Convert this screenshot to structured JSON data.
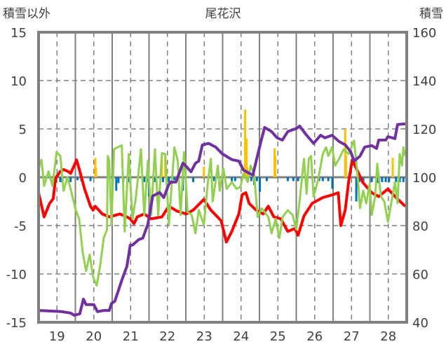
{
  "chart_data": {
    "type": "line",
    "title": "尾花沢",
    "ylabel_left": "積雪以外",
    "ylabel_right": "積雪",
    "xlim": [
      18.5,
      28.5
    ],
    "ylim_left": [
      -15,
      15
    ],
    "ylim_right": [
      40,
      160
    ],
    "x_ticks": [
      "19",
      "20",
      "21",
      "22",
      "23",
      "24",
      "25",
      "26",
      "27",
      "28"
    ],
    "y_ticks_left": [
      "15",
      "10",
      "5",
      "0",
      "-5",
      "-10",
      "-15"
    ],
    "y_ticks_right": [
      "160",
      "140",
      "120",
      "100",
      "80",
      "60",
      "40"
    ],
    "grid": true,
    "colors": {
      "red": "#ff0000",
      "green": "#92d050",
      "purple": "#7030a0",
      "orange": "#ffc000",
      "blue": "#0070c0",
      "axis": "#808080"
    },
    "series": [
      {
        "name": "red-line",
        "axis": "left",
        "color": "#ff0000",
        "points": [
          [
            18.5,
            -1.6
          ],
          [
            18.65,
            -4.1
          ],
          [
            18.8,
            -2.7
          ],
          [
            18.9,
            -2.2
          ],
          [
            18.96,
            -0.1
          ],
          [
            19.09,
            0.6
          ],
          [
            19.18,
            0.8
          ],
          [
            19.3,
            0.6
          ],
          [
            19.37,
            0.4
          ],
          [
            19.49,
            1.4
          ],
          [
            19.53,
            1.8
          ],
          [
            19.6,
            0.9
          ],
          [
            19.75,
            -1.2
          ],
          [
            19.91,
            -3.0
          ],
          [
            19.98,
            -3.4
          ],
          [
            20.04,
            -3.0
          ],
          [
            20.23,
            -3.8
          ],
          [
            20.42,
            -4.1
          ],
          [
            20.71,
            -3.8
          ],
          [
            20.9,
            -4.1
          ],
          [
            20.99,
            -4.3
          ],
          [
            21.09,
            -4.8
          ],
          [
            21.18,
            -4.1
          ],
          [
            21.37,
            -3.8
          ],
          [
            21.56,
            -4.3
          ],
          [
            21.85,
            -4.1
          ],
          [
            22.04,
            -3.0
          ],
          [
            22.26,
            -3.5
          ],
          [
            22.51,
            -3.8
          ],
          [
            22.7,
            -3.4
          ],
          [
            22.99,
            -2.3
          ],
          [
            23.18,
            -3.4
          ],
          [
            23.46,
            -4.5
          ],
          [
            23.6,
            -6.7
          ],
          [
            23.75,
            -5.6
          ],
          [
            23.94,
            -3.8
          ],
          [
            24.03,
            -1.8
          ],
          [
            24.13,
            -1.6
          ],
          [
            24.22,
            -2.7
          ],
          [
            24.41,
            -3.4
          ],
          [
            24.6,
            -3.8
          ],
          [
            24.74,
            -3.0
          ],
          [
            24.89,
            -4.1
          ],
          [
            25.08,
            -4.3
          ],
          [
            25.27,
            -5.6
          ],
          [
            25.46,
            -5.3
          ],
          [
            25.55,
            -6.0
          ],
          [
            25.71,
            -4.0
          ],
          [
            25.93,
            -2.7
          ],
          [
            26.22,
            -2.1
          ],
          [
            26.5,
            -1.8
          ],
          [
            26.64,
            -1.6
          ],
          [
            26.71,
            -5.0
          ],
          [
            26.83,
            -3.4
          ],
          [
            26.92,
            -0.5
          ],
          [
            27.02,
            1.8
          ],
          [
            27.17,
            0.6
          ],
          [
            27.3,
            -0.5
          ],
          [
            27.55,
            -1.6
          ],
          [
            27.74,
            -2.0
          ],
          [
            27.99,
            -1.2
          ],
          [
            28.21,
            -2.1
          ],
          [
            28.46,
            -3.0
          ]
        ]
      },
      {
        "name": "green-line",
        "axis": "left",
        "color": "#92d050",
        "points": [
          [
            18.5,
            0.9
          ],
          [
            18.58,
            1.8
          ],
          [
            18.65,
            -0.9
          ],
          [
            18.77,
            0.6
          ],
          [
            18.88,
            -0.9
          ],
          [
            18.99,
            2.6
          ],
          [
            19.09,
            2.2
          ],
          [
            19.18,
            -1.4
          ],
          [
            19.28,
            0
          ],
          [
            19.37,
            -1.2
          ],
          [
            19.51,
            -3.4
          ],
          [
            19.6,
            -4.3
          ],
          [
            19.7,
            -7.8
          ],
          [
            19.79,
            -9.7
          ],
          [
            19.89,
            -8.0
          ],
          [
            19.98,
            -10.3
          ],
          [
            20.08,
            -11.2
          ],
          [
            20.17,
            -9.2
          ],
          [
            20.27,
            -6.3
          ],
          [
            20.36,
            -5.4
          ],
          [
            20.38,
            2.2
          ],
          [
            20.42,
            1.7
          ],
          [
            20.48,
            -4.9
          ],
          [
            20.55,
            2.9
          ],
          [
            20.65,
            3.1
          ],
          [
            20.76,
            3.3
          ],
          [
            20.84,
            -5.6
          ],
          [
            20.95,
            2.4
          ],
          [
            21.05,
            -4.3
          ],
          [
            21.14,
            -2.2
          ],
          [
            21.28,
            2.9
          ],
          [
            21.37,
            -3.9
          ],
          [
            21.47,
            1.7
          ],
          [
            21.56,
            -3.9
          ],
          [
            21.66,
            2.9
          ],
          [
            21.75,
            -3.9
          ],
          [
            21.85,
            2.5
          ],
          [
            21.94,
            2.4
          ],
          [
            22.04,
            -4.9
          ],
          [
            22.19,
            3.1
          ],
          [
            22.28,
            1.7
          ],
          [
            22.36,
            -3.9
          ],
          [
            22.45,
            2.6
          ],
          [
            22.55,
            -3.6
          ],
          [
            22.66,
            -3.9
          ],
          [
            22.76,
            -5.8
          ],
          [
            22.85,
            -3.4
          ],
          [
            22.99,
            -4.9
          ],
          [
            23.1,
            -0.5
          ],
          [
            23.18,
            1.9
          ],
          [
            23.23,
            -2.5
          ],
          [
            23.37,
            1.2
          ],
          [
            23.42,
            -1.4
          ],
          [
            23.52,
            0.9
          ],
          [
            23.61,
            -1.2
          ],
          [
            23.75,
            -0.5
          ],
          [
            23.88,
            -1.2
          ],
          [
            23.98,
            -1.0
          ],
          [
            24.07,
            0.4
          ],
          [
            24.18,
            -0.5
          ],
          [
            24.26,
            1.2
          ],
          [
            24.36,
            0.2
          ],
          [
            24.45,
            -4.1
          ],
          [
            24.56,
            -3.2
          ],
          [
            24.74,
            -4.1
          ],
          [
            24.83,
            -5.8
          ],
          [
            24.94,
            -4.3
          ],
          [
            25.04,
            -6.3
          ],
          [
            25.13,
            -4.1
          ],
          [
            25.27,
            -3.4
          ],
          [
            25.4,
            -3.9
          ],
          [
            25.5,
            -5.4
          ],
          [
            25.59,
            -2.5
          ],
          [
            25.71,
            1.9
          ],
          [
            25.78,
            -1.7
          ],
          [
            25.84,
            1.9
          ],
          [
            25.9,
            2.2
          ],
          [
            25.97,
            -2.0
          ],
          [
            26.09,
            -0.3
          ],
          [
            26.22,
            2.4
          ],
          [
            26.31,
            3.1
          ],
          [
            26.37,
            2.2
          ],
          [
            26.47,
            3.1
          ],
          [
            26.56,
            1.2
          ],
          [
            26.66,
            1.9
          ],
          [
            26.79,
            2.9
          ],
          [
            26.92,
            2.4
          ],
          [
            27.07,
            3.8
          ],
          [
            27.17,
            0
          ],
          [
            27.23,
            -3.2
          ],
          [
            27.32,
            -1.4
          ],
          [
            27.4,
            -2.7
          ],
          [
            27.49,
            -0.7
          ],
          [
            27.55,
            -3.9
          ],
          [
            27.64,
            -2.0
          ],
          [
            27.7,
            1.4
          ],
          [
            27.8,
            -2.0
          ],
          [
            27.89,
            -2.5
          ],
          [
            27.99,
            -4.6
          ],
          [
            28.08,
            -2.7
          ],
          [
            28.18,
            -0.5
          ],
          [
            28.25,
            -2.7
          ],
          [
            28.31,
            2.4
          ],
          [
            28.37,
            1.2
          ],
          [
            28.41,
            3.1
          ],
          [
            28.46,
            2.2
          ]
        ]
      },
      {
        "name": "snow-depth-line",
        "axis": "right",
        "color": "#7030a0",
        "points": [
          [
            18.5,
            44.9
          ],
          [
            19.13,
            44.4
          ],
          [
            19.37,
            43.8
          ],
          [
            19.47,
            42.9
          ],
          [
            19.62,
            43.5
          ],
          [
            19.72,
            49.6
          ],
          [
            19.79,
            47.3
          ],
          [
            20.0,
            47.3
          ],
          [
            20.1,
            44.4
          ],
          [
            20.27,
            44.9
          ],
          [
            20.42,
            44.9
          ],
          [
            20.48,
            47.8
          ],
          [
            20.57,
            48.7
          ],
          [
            20.76,
            57.4
          ],
          [
            20.9,
            63.2
          ],
          [
            20.99,
            71.9
          ],
          [
            21.05,
            71.9
          ],
          [
            21.22,
            74.2
          ],
          [
            21.33,
            74.8
          ],
          [
            21.47,
            80.6
          ],
          [
            21.6,
            92.2
          ],
          [
            21.79,
            93.7
          ],
          [
            21.9,
            91.6
          ],
          [
            22.04,
            97.1
          ],
          [
            22.09,
            98.0
          ],
          [
            22.23,
            98.0
          ],
          [
            22.42,
            105.8
          ],
          [
            22.47,
            105.2
          ],
          [
            22.64,
            102.3
          ],
          [
            22.76,
            105.8
          ],
          [
            22.85,
            106.7
          ],
          [
            22.95,
            113.4
          ],
          [
            23.12,
            114.0
          ],
          [
            23.31,
            112.5
          ],
          [
            23.5,
            109.6
          ],
          [
            23.75,
            107.3
          ],
          [
            23.94,
            106.7
          ],
          [
            24.07,
            102.9
          ],
          [
            24.32,
            100.9
          ],
          [
            24.41,
            106.7
          ],
          [
            24.55,
            115.4
          ],
          [
            24.64,
            120.6
          ],
          [
            24.83,
            118.9
          ],
          [
            24.98,
            116.3
          ],
          [
            25.12,
            115.4
          ],
          [
            25.27,
            118.9
          ],
          [
            25.52,
            120.3
          ],
          [
            25.59,
            121.2
          ],
          [
            25.78,
            117.4
          ],
          [
            25.97,
            114.0
          ],
          [
            26.16,
            117.4
          ],
          [
            26.28,
            116.3
          ],
          [
            26.47,
            117.4
          ],
          [
            26.66,
            114.8
          ],
          [
            26.83,
            113.4
          ],
          [
            26.98,
            110.5
          ],
          [
            27.07,
            106.7
          ],
          [
            27.23,
            108.7
          ],
          [
            27.36,
            112.5
          ],
          [
            27.55,
            113.1
          ],
          [
            27.68,
            111.9
          ],
          [
            27.74,
            115.4
          ],
          [
            27.93,
            115.4
          ],
          [
            27.99,
            116.8
          ],
          [
            28.18,
            116.0
          ],
          [
            28.25,
            121.8
          ],
          [
            28.46,
            122.1
          ]
        ]
      }
    ],
    "bars": [
      {
        "name": "orange-bars",
        "axis": "left",
        "color": "#ffc000",
        "points": [
          [
            20.04,
            2.0
          ],
          [
            20.06,
            1.0
          ],
          [
            21.85,
            2.0
          ],
          [
            21.94,
            2.0
          ],
          [
            22.99,
            1.1
          ],
          [
            24.11,
            7.0
          ],
          [
            24.15,
            4.0
          ],
          [
            24.17,
            1.0
          ],
          [
            24.91,
            3.0
          ],
          [
            24.93,
            2.2
          ],
          [
            26.83,
            5.0
          ],
          [
            26.85,
            2.3
          ],
          [
            28.12,
            2.0
          ]
        ]
      },
      {
        "name": "blue-bars",
        "axis": "left",
        "color": "#0070c0",
        "points": [
          [
            19.09,
            -0.5
          ],
          [
            19.15,
            -0.5
          ],
          [
            19.28,
            -0.3
          ],
          [
            19.37,
            -0.5
          ],
          [
            19.56,
            -0.3
          ],
          [
            19.66,
            -0.4
          ],
          [
            19.91,
            -0.4
          ],
          [
            20.61,
            -1.4
          ],
          [
            20.67,
            -0.6
          ],
          [
            20.8,
            -0.5
          ],
          [
            20.93,
            -0.5
          ],
          [
            20.99,
            -0.6
          ],
          [
            21.37,
            -0.5
          ],
          [
            21.47,
            -0.5
          ],
          [
            21.5,
            -2.0
          ],
          [
            21.66,
            -0.5
          ],
          [
            21.88,
            -0.5
          ],
          [
            22.04,
            -0.5
          ],
          [
            22.19,
            -0.3
          ],
          [
            22.42,
            -1.4
          ],
          [
            22.7,
            -0.5
          ],
          [
            23.27,
            -0.4
          ],
          [
            23.75,
            -0.4
          ],
          [
            23.84,
            -0.4
          ],
          [
            24.28,
            -0.4
          ],
          [
            24.36,
            -0.8
          ],
          [
            24.43,
            -0.4
          ],
          [
            24.51,
            -1.5
          ],
          [
            24.7,
            -0.4
          ],
          [
            25.27,
            -0.4
          ],
          [
            25.42,
            -0.4
          ],
          [
            25.55,
            -0.4
          ],
          [
            26.12,
            -0.4
          ],
          [
            26.22,
            -0.4
          ],
          [
            26.37,
            -0.4
          ],
          [
            26.48,
            -1.2
          ],
          [
            27.13,
            -2.5
          ],
          [
            27.21,
            -0.5
          ],
          [
            27.32,
            -0.5
          ],
          [
            27.55,
            -0.5
          ],
          [
            27.7,
            -0.6
          ],
          [
            27.83,
            -0.5
          ],
          [
            27.93,
            -0.5
          ],
          [
            28.02,
            -0.5
          ],
          [
            28.21,
            -0.5
          ],
          [
            28.31,
            -0.5
          ],
          [
            28.41,
            -0.5
          ]
        ]
      }
    ]
  }
}
